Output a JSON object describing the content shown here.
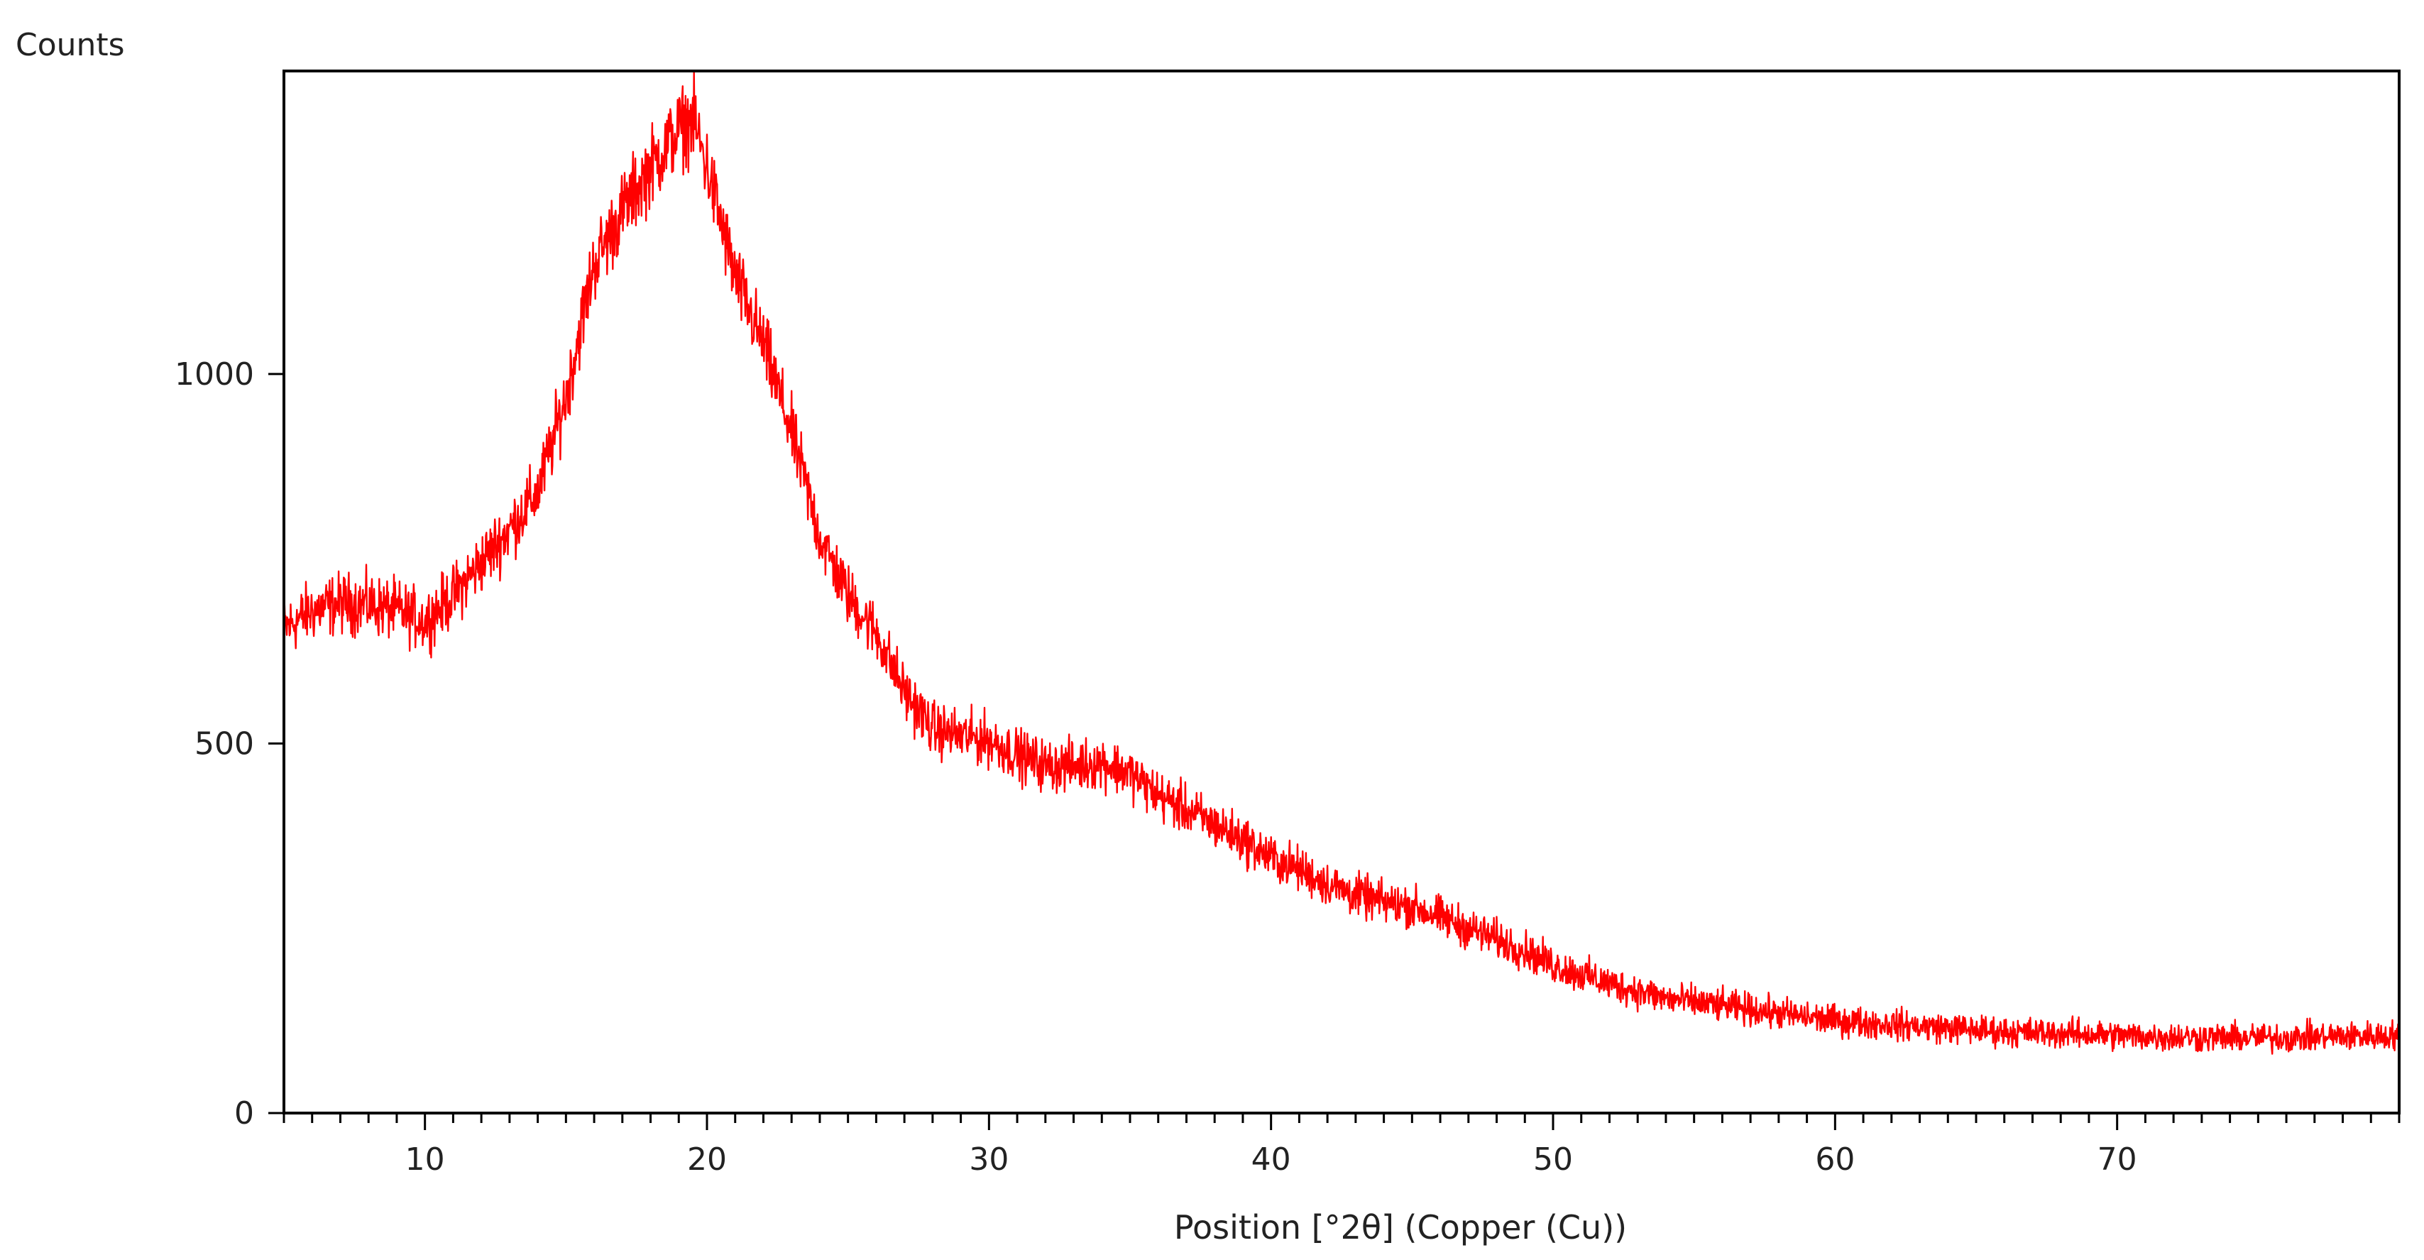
{
  "chart_data": {
    "type": "line",
    "ylabel": "Counts",
    "xlabel": "Position [°2θ] (Copper (Cu))",
    "xlim": [
      5,
      80
    ],
    "ylim": [
      0,
      1410
    ],
    "x_ticks": [
      10,
      20,
      30,
      40,
      50,
      60,
      70
    ],
    "x_tick_labels": [
      "10",
      "20",
      "30",
      "40",
      "50",
      "60",
      "70"
    ],
    "y_ticks": [
      0,
      500,
      1000
    ],
    "y_tick_labels": [
      "0",
      "500",
      "1000"
    ],
    "x_minor_step": 1,
    "grid": false,
    "legend": "none",
    "line_color": "#ff0000",
    "series": [
      {
        "x": [
          5,
          6,
          7,
          8,
          9,
          10,
          11,
          12,
          13,
          14,
          15,
          16,
          17,
          18,
          19,
          19.5,
          20,
          21,
          22,
          23,
          24,
          25,
          26,
          27,
          28,
          29,
          30,
          31,
          32,
          33,
          34,
          35,
          36,
          37,
          38,
          39,
          40,
          41,
          42,
          43,
          44,
          45,
          46,
          47,
          48,
          49,
          50,
          52,
          54,
          56,
          58,
          60,
          62,
          64,
          66,
          68,
          70,
          72,
          74,
          76,
          78,
          80
        ],
        "y": [
          655,
          680,
          690,
          688,
          680,
          665,
          700,
          745,
          790,
          840,
          970,
          1150,
          1220,
          1280,
          1330,
          1345,
          1280,
          1130,
          1040,
          920,
          780,
          700,
          650,
          570,
          520,
          510,
          505,
          485,
          470,
          470,
          475,
          460,
          430,
          410,
          390,
          370,
          345,
          330,
          310,
          295,
          285,
          280,
          265,
          250,
          235,
          220,
          200,
          175,
          155,
          145,
          135,
          125,
          120,
          115,
          110,
          108,
          105,
          103,
          102,
          102,
          104,
          105
        ]
      }
    ]
  }
}
